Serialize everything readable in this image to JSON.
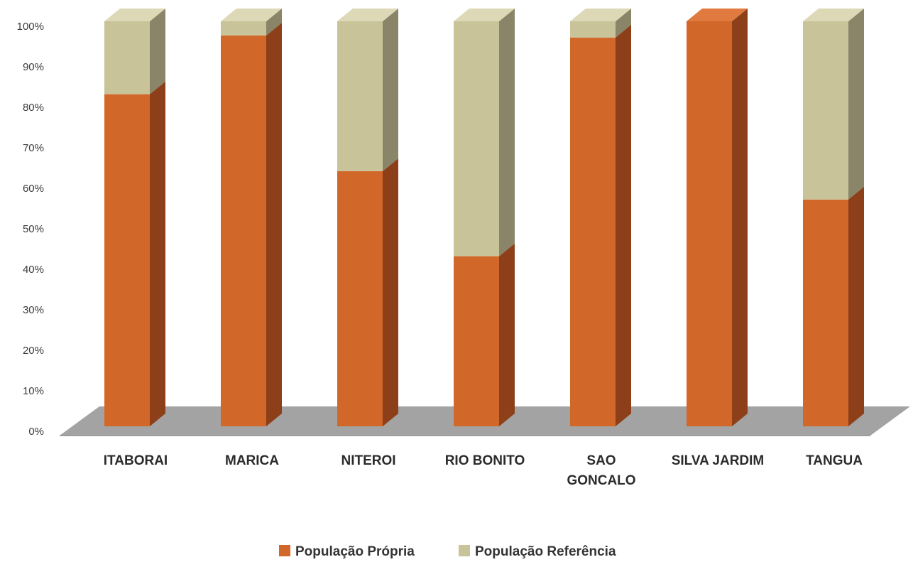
{
  "chart_data": {
    "type": "bar",
    "stacked": true,
    "percent": true,
    "three_d": true,
    "categories": [
      "ITABORAI",
      "MARICA",
      "NITEROI",
      "RIO BONITO",
      "SAO\nGONCALO",
      "SILVA JARDIM",
      "TANGUA"
    ],
    "series": [
      {
        "name": "População Própria",
        "values": [
          82,
          96.5,
          63,
          42,
          96,
          100,
          56
        ]
      },
      {
        "name": "População Referência",
        "values": [
          18,
          3.5,
          37,
          58,
          4,
          0,
          44
        ]
      }
    ],
    "ylim": [
      0,
      100
    ],
    "yticks": [
      "0%",
      "10%",
      "20%",
      "30%",
      "40%",
      "50%",
      "60%",
      "70%",
      "80%",
      "90%",
      "100%"
    ],
    "legend_position": "bottom",
    "grid": false,
    "colors": {
      "own_front": "#D2672A",
      "own_side": "#8C3F18",
      "own_top": "#E07A3E",
      "ref_front": "#C9C39A",
      "ref_side": "#8A8568",
      "ref_top": "#DDD8B5",
      "floor": "#A3A3A3",
      "floor_edge": "#8E8E8E"
    }
  }
}
